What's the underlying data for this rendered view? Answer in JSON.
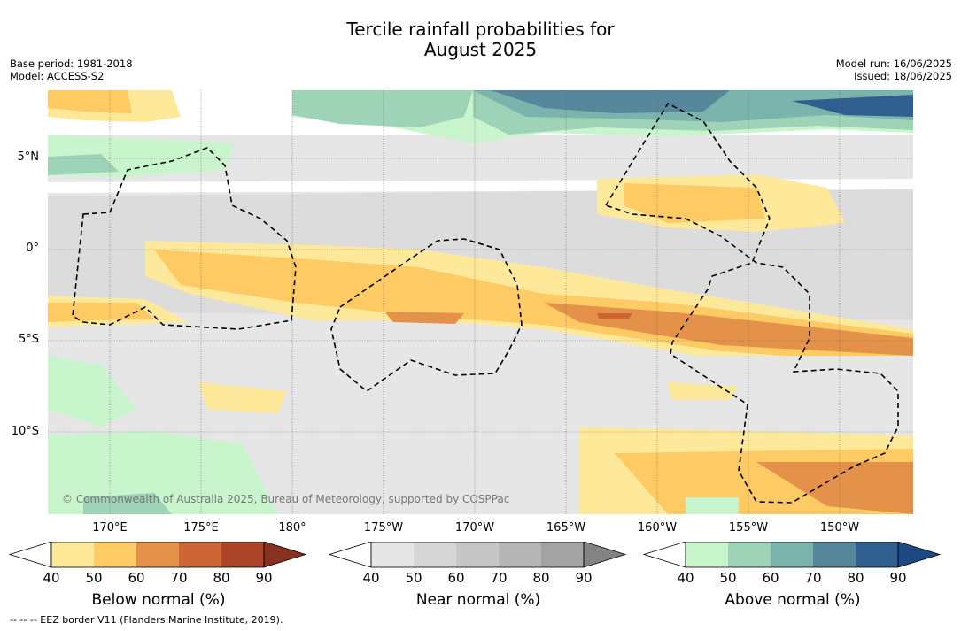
{
  "title_line1": "Tercile rainfall probabilities for",
  "title_line2": "August 2025",
  "base_period": "Base period: 1981-2018",
  "model": "Model: ACCESS-S2",
  "model_run": "Model run: 16/06/2025",
  "issued": "Issued: 18/06/2025",
  "lat_labels": [
    "5°N",
    "0°",
    "5°S",
    "10°S"
  ],
  "lon_labels": [
    "170°E",
    "175°E",
    "180°",
    "175°W",
    "170°W",
    "165°W",
    "160°W",
    "155°W",
    "150°W"
  ],
  "copyright": "© Commonwealth of Australia 2025, Bureau of Meteorology, supported by COSPPac",
  "footer": "--  --  -- EEZ border V11 (Flanders Marine Institute, 2019).",
  "colorbars": [
    {
      "title": "Below normal (%)",
      "ticks": [
        "40",
        "50",
        "60",
        "70",
        "80",
        "90"
      ],
      "colors": [
        "#ffffff",
        "#fee99b",
        "#fdca63",
        "#e4914a",
        "#cd6535",
        "#ac4427",
        "#883121"
      ]
    },
    {
      "title": "Near normal (%)",
      "ticks": [
        "40",
        "50",
        "60",
        "70",
        "80",
        "90"
      ],
      "colors": [
        "#ffffff",
        "#e6e6e6",
        "#d6d6d6",
        "#c6c6c6",
        "#b5b5b5",
        "#a3a3a3",
        "#838383"
      ]
    },
    {
      "title": "Above normal (%)",
      "ticks": [
        "40",
        "50",
        "60",
        "70",
        "80",
        "90"
      ],
      "colors": [
        "#ffffff",
        "#c8f5cc",
        "#9ed3b8",
        "#7bb3ad",
        "#57879a",
        "#305f8f",
        "#1e4a83"
      ]
    }
  ]
}
